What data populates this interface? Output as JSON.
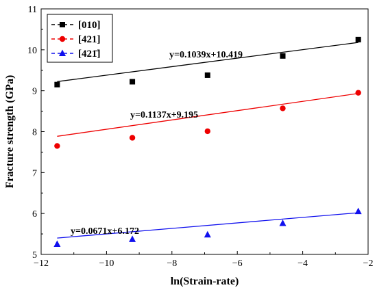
{
  "chart_data": {
    "type": "scatter",
    "xlabel": "ln(Strain-rate)",
    "ylabel": "Fracture strength (GPa)",
    "xlim": [
      -12,
      -2
    ],
    "ylim": [
      5,
      11
    ],
    "xticks": [
      -12,
      -10,
      -8,
      -6,
      -4,
      -2
    ],
    "yticks": [
      5,
      6,
      7,
      8,
      9,
      10,
      11
    ],
    "xtick_labels": [
      "−12",
      "−10",
      "−8",
      "−6",
      "−4",
      "−2"
    ],
    "ytick_labels": [
      "5",
      "6",
      "7",
      "8",
      "9",
      "10",
      "11"
    ],
    "legend_position": "top-left",
    "grid": false,
    "series": [
      {
        "name": "[010]",
        "color": "#000000",
        "marker": "square",
        "x": [
          -11.51,
          -9.21,
          -6.91,
          -4.61,
          -2.3
        ],
        "y": [
          9.15,
          9.22,
          9.38,
          9.85,
          10.25
        ],
        "fit": {
          "slope": 0.1039,
          "intercept": 10.419,
          "x_range": [
            -11.51,
            -2.3
          ]
        },
        "equation": "y=0.1039x+10.419"
      },
      {
        "name": "[421]",
        "color": "#ee0000",
        "marker": "circle",
        "x": [
          -11.51,
          -9.21,
          -6.91,
          -4.61,
          -2.3
        ],
        "y": [
          7.65,
          7.85,
          8.01,
          8.57,
          8.95
        ],
        "fit": {
          "slope": 0.1137,
          "intercept": 9.195,
          "x_range": [
            -11.51,
            -2.3
          ]
        },
        "equation": "y=0.1137x+9.195"
      },
      {
        "name": "[421̄]",
        "color": "#1010ee",
        "marker": "triangle",
        "x": [
          -11.51,
          -9.21,
          -6.91,
          -4.61,
          -2.3
        ],
        "y": [
          5.25,
          5.37,
          5.48,
          5.76,
          6.05
        ],
        "fit": {
          "slope": 0.0671,
          "intercept": 6.172,
          "x_range": [
            -11.51,
            -2.3
          ]
        },
        "equation": "y=0.0671x+6.172"
      }
    ]
  }
}
